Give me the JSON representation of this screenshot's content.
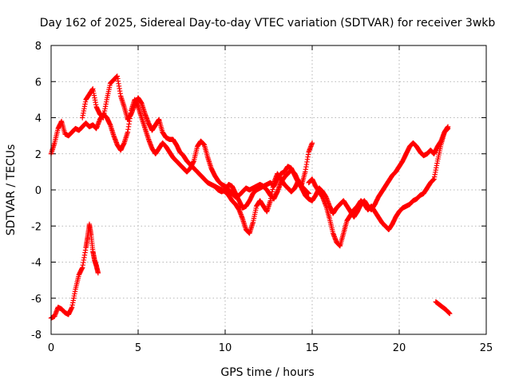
{
  "chart_data": {
    "type": "scatter",
    "title": "Day 162 of 2025, Sidereal Day-to-day VTEC variation (SDTVAR) for receiver 3wkb",
    "xlabel": "GPS time / hours",
    "ylabel": "SDTVAR / TECUs",
    "xlim": [
      0,
      25
    ],
    "ylim": [
      -8,
      8
    ],
    "xticks": [
      0,
      5,
      10,
      15,
      20,
      25
    ],
    "yticks": [
      -8,
      -6,
      -4,
      -2,
      0,
      2,
      4,
      6,
      8
    ],
    "grid": true,
    "marker": "+",
    "series": [
      {
        "name": "SDTVAR",
        "color": "#ff0000",
        "segments": [
          {
            "x": [
              0.0,
              0.2,
              0.4,
              0.6,
              0.8,
              1.0,
              1.2,
              1.4,
              1.6,
              1.8,
              2.0,
              2.2,
              2.4,
              2.6,
              2.8,
              3.0,
              3.2,
              3.4,
              3.6,
              3.8,
              4.0,
              4.2,
              4.4,
              4.6,
              4.8,
              5.0,
              5.2,
              5.4,
              5.6,
              5.8,
              6.0,
              6.2,
              6.4,
              6.6,
              6.8,
              7.0,
              7.2,
              7.4,
              7.6,
              7.8,
              8.0,
              8.2,
              8.4,
              8.6,
              8.8,
              9.0,
              9.2,
              9.4,
              9.6,
              9.8,
              10.0,
              10.2,
              10.4,
              10.6,
              10.8,
              11.0,
              11.2,
              11.4,
              11.6,
              11.8,
              12.0,
              12.2,
              12.4,
              12.6,
              12.8,
              13.0,
              13.2,
              13.4,
              13.6,
              13.8,
              14.0,
              14.2,
              14.4,
              14.6,
              14.8,
              15.0,
              15.2,
              15.4,
              15.6,
              15.8,
              16.0,
              16.2,
              16.4,
              16.6,
              16.8,
              17.0,
              17.2,
              17.4,
              17.6,
              17.8,
              18.0,
              18.2,
              18.4,
              18.6,
              18.8,
              19.0,
              19.2,
              19.4,
              19.6,
              19.8,
              20.0,
              20.2,
              20.4,
              20.6,
              20.8,
              21.0,
              21.2,
              21.4,
              21.6,
              21.8,
              22.0,
              22.2,
              22.4,
              22.6,
              22.8
            ],
            "y": [
              2.0,
              2.6,
              3.4,
              3.8,
              3.1,
              3.0,
              3.2,
              3.4,
              3.3,
              3.5,
              3.7,
              3.5,
              3.6,
              3.4,
              3.9,
              4.2,
              4.0,
              3.6,
              3.0,
              2.5,
              2.2,
              2.6,
              3.2,
              4.4,
              5.0,
              4.6,
              4.0,
              3.4,
              2.8,
              2.3,
              2.0,
              2.3,
              2.6,
              2.4,
              2.1,
              1.8,
              1.6,
              1.4,
              1.2,
              1.0,
              1.2,
              1.6,
              2.4,
              2.7,
              2.5,
              1.8,
              1.2,
              0.8,
              0.5,
              0.3,
              0.2,
              0.0,
              -0.2,
              -0.4,
              -0.3,
              -0.1,
              0.1,
              0.0,
              0.1,
              0.2,
              0.3,
              0.2,
              0.3,
              0.4,
              0.2,
              0.6,
              0.9,
              1.0,
              1.3,
              1.2,
              0.8,
              0.4,
              0.1,
              -0.3,
              -0.5,
              -0.6,
              -0.3,
              0.1,
              -0.1,
              -0.4,
              -0.9,
              -1.3,
              -1.0,
              -0.8,
              -0.6,
              -0.9,
              -1.2,
              -1.5,
              -1.2,
              -0.8,
              -0.6,
              -0.9,
              -1.1,
              -0.8,
              -0.4,
              -0.1,
              0.2,
              0.5,
              0.8,
              1.0,
              1.3,
              1.6,
              2.0,
              2.4,
              2.6,
              2.4,
              2.1,
              1.9,
              2.0,
              2.2,
              2.0,
              2.4,
              2.7,
              3.2,
              3.5
            ]
          },
          {
            "x": [
              1.8,
              2.0,
              2.2,
              2.4,
              2.6,
              2.8,
              3.0,
              3.2,
              3.4,
              3.6,
              3.8,
              4.0,
              4.2,
              4.4,
              4.6,
              4.8,
              5.0,
              5.2,
              5.4,
              5.6,
              5.8,
              6.0,
              6.2,
              6.4,
              6.6,
              6.8,
              7.0,
              7.2,
              7.4,
              7.6,
              7.8,
              8.0,
              8.2,
              8.4,
              8.6,
              8.8,
              9.0,
              9.2,
              9.4,
              9.6,
              9.8,
              10.0,
              10.2,
              10.4,
              10.6,
              10.8,
              11.0,
              11.2,
              11.4,
              11.6,
              11.8,
              12.0,
              12.2,
              12.4,
              12.6,
              12.8,
              13.0,
              13.2,
              13.4,
              13.6,
              13.8,
              14.0,
              14.2,
              14.4,
              14.6,
              14.8,
              15.0
            ],
            "y": [
              4.0,
              5.0,
              5.3,
              5.6,
              4.6,
              4.2,
              4.0,
              5.0,
              5.9,
              6.1,
              6.3,
              5.2,
              4.6,
              3.9,
              4.2,
              4.7,
              5.1,
              4.8,
              4.2,
              3.7,
              3.3,
              3.6,
              3.9,
              3.2,
              2.9,
              2.8,
              2.8,
              2.5,
              2.1,
              1.9,
              1.6,
              1.4,
              1.2,
              1.0,
              0.8,
              0.6,
              0.4,
              0.3,
              0.2,
              0.1,
              0.0,
              -0.1,
              -0.3,
              -0.6,
              -0.8,
              -1.1,
              -1.6,
              -2.2,
              -2.4,
              -1.8,
              -0.9,
              -0.6,
              -0.9,
              -1.2,
              -0.6,
              0.4,
              0.9,
              0.6,
              0.3,
              0.1,
              -0.1,
              0.1,
              0.5,
              0.3,
              1.0,
              2.1,
              2.6
            ]
          },
          {
            "x": [
              14.8,
              15.0,
              15.2,
              15.4,
              15.6,
              15.8,
              16.0,
              16.2,
              16.4,
              16.6,
              16.8,
              17.0,
              17.2,
              17.4,
              17.6,
              17.8,
              18.0,
              18.2,
              18.4,
              18.6,
              18.8,
              19.0,
              19.2,
              19.4,
              19.6,
              19.8,
              20.0,
              20.2,
              20.4,
              20.6,
              20.8,
              21.0,
              21.2,
              21.4,
              21.6,
              21.8,
              22.0,
              22.2,
              22.4,
              22.6,
              22.8
            ],
            "y": [
              0.4,
              0.6,
              0.2,
              -0.1,
              -0.4,
              -0.9,
              -1.6,
              -2.4,
              -2.9,
              -3.1,
              -2.4,
              -1.7,
              -1.4,
              -1.1,
              -0.9,
              -0.6,
              -0.8,
              -1.1,
              -0.9,
              -1.2,
              -1.5,
              -1.8,
              -2.0,
              -2.2,
              -1.9,
              -1.5,
              -1.2,
              -1.0,
              -0.9,
              -0.8,
              -0.6,
              -0.5,
              -0.3,
              -0.2,
              0.1,
              0.4,
              0.6,
              1.6,
              2.5,
              3.2,
              3.4
            ]
          },
          {
            "x": [
              9.4,
              9.6,
              9.8,
              10.0,
              10.2,
              10.4,
              10.6,
              10.8,
              11.0,
              11.2,
              11.4,
              11.6,
              11.8,
              12.0,
              12.2,
              12.4,
              12.6,
              12.8,
              13.0,
              13.2,
              13.4,
              13.6,
              13.8,
              14.0,
              14.2,
              14.4,
              14.6,
              14.8
            ],
            "y": [
              0.2,
              0.0,
              -0.1,
              0.0,
              0.3,
              0.2,
              -0.2,
              -0.6,
              -1.0,
              -0.9,
              -0.6,
              -0.2,
              0.0,
              0.1,
              0.2,
              0.0,
              -0.3,
              -0.5,
              -0.1,
              0.4,
              0.7,
              0.9,
              1.1,
              0.9,
              0.5,
              0.2,
              0.0,
              -0.2
            ]
          },
          {
            "x": [
              0.0,
              0.2,
              0.4,
              0.6,
              0.8,
              1.0,
              1.2,
              1.4,
              1.6,
              1.8,
              2.0,
              2.1,
              2.2,
              2.3,
              2.4,
              2.5,
              2.6,
              2.7
            ],
            "y": [
              -7.1,
              -7.0,
              -6.5,
              -6.6,
              -6.8,
              -6.9,
              -6.5,
              -5.5,
              -4.7,
              -4.3,
              -3.2,
              -2.6,
              -1.9,
              -2.5,
              -3.4,
              -3.9,
              -4.2,
              -4.6
            ]
          },
          {
            "x": [
              22.1,
              22.3,
              22.5,
              22.7,
              22.9
            ],
            "y": [
              -6.2,
              -6.35,
              -6.5,
              -6.65,
              -6.85
            ]
          }
        ]
      }
    ]
  }
}
